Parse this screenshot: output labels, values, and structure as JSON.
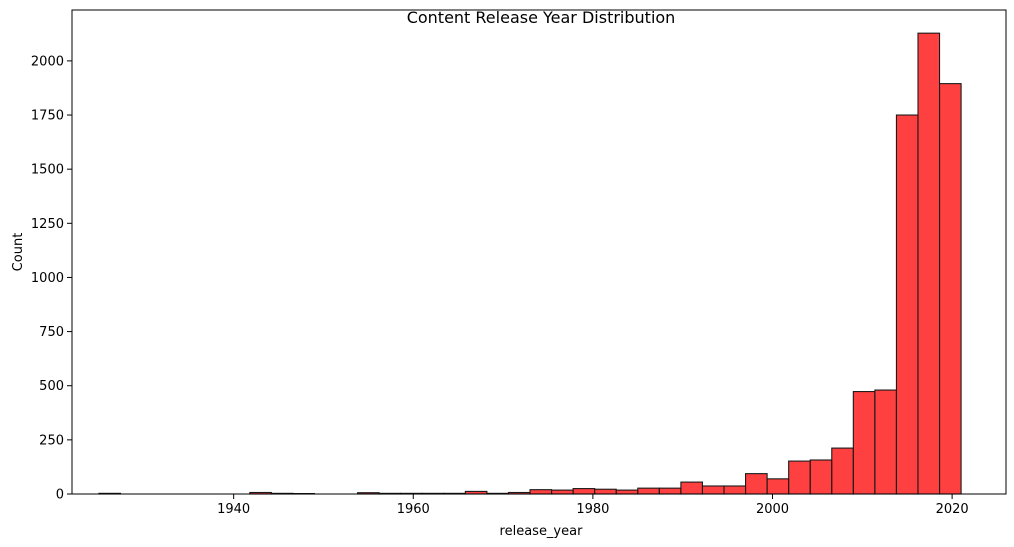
{
  "chart_data": {
    "type": "bar",
    "title": "Content Release Year Distribution",
    "xlabel": "release_year",
    "ylabel": "Count",
    "xlim": [
      1922,
      2026
    ],
    "ylim": [
      0,
      2235
    ],
    "xticks": [
      1940,
      1960,
      1980,
      2000,
      2020
    ],
    "yticks": [
      0,
      250,
      500,
      750,
      1000,
      1250,
      1500,
      1750,
      2000
    ],
    "grid": false,
    "bar_color": "#ff0000",
    "edge_color": "#1a1a1a",
    "bin_width": 2.4,
    "bin_start": 1925,
    "values": [
      3,
      0,
      0,
      0,
      0,
      0,
      0,
      7,
      3,
      2,
      0,
      0,
      6,
      3,
      3,
      3,
      3,
      12,
      3,
      7,
      20,
      18,
      25,
      22,
      18,
      27,
      27,
      55,
      37,
      37,
      94,
      70,
      152,
      157,
      212,
      473,
      480,
      1750,
      2128,
      1895
    ]
  }
}
